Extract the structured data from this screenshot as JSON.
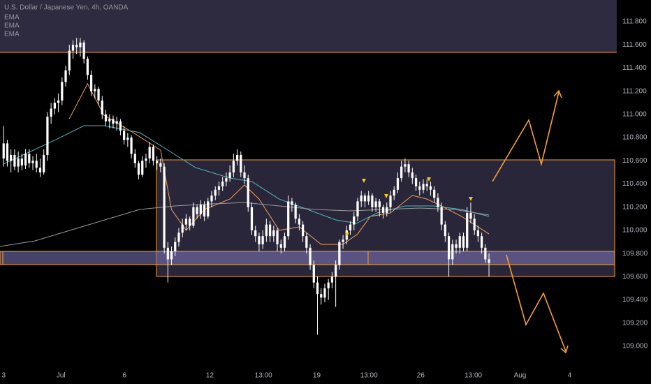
{
  "chart_data": {
    "type": "candlestick",
    "title": "U.S. Dollar / Japanese Yen, 4h, OANDA",
    "color": "#ffffff",
    "grid": false,
    "xlim": [
      -1,
      168.4
    ],
    "ylim": [
      108.825,
      111.987
    ],
    "xticks": [
      {
        "value": 0,
        "label": "3"
      },
      {
        "value": 15.7,
        "label": "Jul"
      },
      {
        "value": 33.1,
        "label": "6"
      },
      {
        "value": 56.5,
        "label": "12"
      },
      {
        "value": 71.2,
        "label": "13:00"
      },
      {
        "value": 85.8,
        "label": "19"
      },
      {
        "value": 100.1,
        "label": "13:00"
      },
      {
        "value": 114.3,
        "label": "26"
      },
      {
        "value": 128.7,
        "label": "13:00"
      },
      {
        "value": 141.5,
        "label": "Aug"
      },
      {
        "value": 155.1,
        "label": "4"
      }
    ],
    "yticks": [
      {
        "value": 109.0,
        "label": "109.000"
      },
      {
        "value": 109.2,
        "label": "109.200"
      },
      {
        "value": 109.4,
        "label": "109.400"
      },
      {
        "value": 109.6,
        "label": "109.600"
      },
      {
        "value": 109.8,
        "label": "109.800"
      },
      {
        "value": 110.0,
        "label": "110.000"
      },
      {
        "value": 110.2,
        "label": "110.200"
      },
      {
        "value": 110.4,
        "label": "110.400"
      },
      {
        "value": 110.6,
        "label": "110.600"
      },
      {
        "value": 110.8,
        "label": "110.800"
      },
      {
        "value": 111.0,
        "label": "111.000"
      },
      {
        "value": 111.2,
        "label": "111.200"
      },
      {
        "value": 111.4,
        "label": "111.400"
      },
      {
        "value": 111.6,
        "label": "111.600"
      },
      {
        "value": 111.8,
        "label": "111.800"
      }
    ],
    "candles": [
      [
        110.62,
        110.9,
        110.55,
        110.75
      ],
      [
        110.75,
        110.78,
        110.55,
        110.6
      ],
      [
        110.6,
        110.7,
        110.5,
        110.65
      ],
      [
        110.65,
        110.7,
        110.52,
        110.55
      ],
      [
        110.55,
        110.68,
        110.5,
        110.62
      ],
      [
        110.62,
        110.66,
        110.52,
        110.56
      ],
      [
        110.56,
        110.7,
        110.53,
        110.66
      ],
      [
        110.66,
        110.7,
        110.54,
        110.58
      ],
      [
        110.58,
        110.64,
        110.52,
        110.6
      ],
      [
        110.6,
        110.66,
        110.5,
        110.54
      ],
      [
        110.54,
        110.62,
        110.46,
        110.5
      ],
      [
        110.5,
        110.7,
        110.48,
        110.65
      ],
      [
        110.65,
        111.02,
        110.6,
        110.98
      ],
      [
        110.98,
        111.1,
        110.92,
        111.05
      ],
      [
        111.05,
        111.14,
        111.0,
        111.1
      ],
      [
        111.1,
        111.18,
        111.02,
        111.12
      ],
      [
        111.12,
        111.32,
        111.08,
        111.28
      ],
      [
        111.28,
        111.42,
        111.24,
        111.38
      ],
      [
        111.38,
        111.6,
        111.34,
        111.55
      ],
      [
        111.55,
        111.64,
        111.48,
        111.6
      ],
      [
        111.6,
        111.66,
        111.52,
        111.58
      ],
      [
        111.58,
        111.66,
        111.5,
        111.62
      ],
      [
        111.62,
        111.64,
        111.44,
        111.48
      ],
      [
        111.48,
        111.5,
        111.3,
        111.34
      ],
      [
        111.34,
        111.38,
        111.16,
        111.2
      ],
      [
        111.2,
        111.26,
        111.14,
        111.22
      ],
      [
        111.22,
        111.24,
        111.08,
        111.12
      ],
      [
        111.12,
        111.16,
        110.96,
        111.0
      ],
      [
        111.0,
        111.04,
        110.9,
        110.94
      ],
      [
        110.94,
        111.0,
        110.88,
        110.96
      ],
      [
        110.96,
        110.99,
        110.88,
        110.92
      ],
      [
        110.92,
        110.98,
        110.86,
        110.94
      ],
      [
        110.94,
        110.96,
        110.82,
        110.86
      ],
      [
        110.86,
        110.9,
        110.74,
        110.78
      ],
      [
        110.78,
        110.84,
        110.72,
        110.8
      ],
      [
        110.8,
        110.82,
        110.62,
        110.66
      ],
      [
        110.66,
        110.7,
        110.54,
        110.58
      ],
      [
        110.58,
        110.6,
        110.44,
        110.48
      ],
      [
        110.48,
        110.64,
        110.46,
        110.6
      ],
      [
        110.6,
        110.66,
        110.54,
        110.62
      ],
      [
        110.62,
        110.76,
        110.58,
        110.72
      ],
      [
        110.72,
        110.74,
        110.56,
        110.6
      ],
      [
        110.6,
        110.64,
        110.52,
        110.58
      ],
      [
        110.58,
        110.62,
        110.5,
        110.55
      ],
      [
        110.55,
        110.58,
        109.8,
        109.85
      ],
      [
        109.85,
        109.9,
        109.55,
        109.75
      ],
      [
        109.75,
        109.86,
        109.7,
        109.82
      ],
      [
        109.82,
        109.94,
        109.78,
        109.9
      ],
      [
        109.9,
        110.02,
        109.86,
        109.98
      ],
      [
        109.98,
        110.1,
        109.94,
        110.05
      ],
      [
        110.05,
        110.14,
        110.0,
        110.1
      ],
      [
        110.1,
        110.12,
        110.0,
        110.04
      ],
      [
        110.04,
        110.24,
        110.02,
        110.2
      ],
      [
        110.2,
        110.22,
        110.1,
        110.14
      ],
      [
        110.14,
        110.26,
        110.1,
        110.22
      ],
      [
        110.22,
        110.25,
        110.08,
        110.12
      ],
      [
        110.12,
        110.28,
        110.1,
        110.25
      ],
      [
        110.25,
        110.34,
        110.2,
        110.3
      ],
      [
        110.3,
        110.38,
        110.26,
        110.35
      ],
      [
        110.35,
        110.42,
        110.3,
        110.38
      ],
      [
        110.38,
        110.46,
        110.34,
        110.42
      ],
      [
        110.42,
        110.5,
        110.38,
        110.45
      ],
      [
        110.45,
        110.56,
        110.42,
        110.5
      ],
      [
        110.5,
        110.66,
        110.46,
        110.6
      ],
      [
        110.6,
        110.7,
        110.56,
        110.65
      ],
      [
        110.65,
        110.68,
        110.46,
        110.5
      ],
      [
        110.5,
        110.56,
        110.4,
        110.45
      ],
      [
        110.45,
        110.48,
        110.16,
        110.2
      ],
      [
        110.2,
        110.24,
        109.96,
        110.0
      ],
      [
        110.0,
        110.04,
        109.9,
        109.95
      ],
      [
        109.95,
        109.98,
        109.82,
        109.88
      ],
      [
        109.88,
        110.0,
        109.84,
        109.95
      ],
      [
        109.95,
        110.1,
        109.9,
        110.05
      ],
      [
        110.05,
        110.08,
        109.9,
        109.95
      ],
      [
        109.95,
        110.04,
        109.9,
        110.0
      ],
      [
        110.0,
        110.02,
        109.82,
        109.88
      ],
      [
        109.88,
        109.92,
        109.8,
        109.85
      ],
      [
        109.85,
        109.98,
        109.82,
        109.95
      ],
      [
        109.95,
        110.3,
        109.92,
        110.25
      ],
      [
        110.25,
        110.28,
        110.16,
        110.22
      ],
      [
        110.22,
        110.24,
        110.06,
        110.1
      ],
      [
        110.1,
        110.14,
        110.0,
        110.05
      ],
      [
        110.05,
        110.08,
        109.9,
        109.95
      ],
      [
        109.95,
        109.98,
        109.8,
        109.85
      ],
      [
        109.85,
        109.88,
        109.66,
        109.7
      ],
      [
        109.7,
        109.74,
        109.5,
        109.55
      ],
      [
        109.55,
        109.6,
        109.1,
        109.45
      ],
      [
        109.45,
        109.5,
        109.36,
        109.42
      ],
      [
        109.42,
        109.54,
        109.38,
        109.5
      ],
      [
        109.5,
        109.58,
        109.4,
        109.55
      ],
      [
        109.55,
        109.64,
        109.5,
        109.6
      ],
      [
        109.6,
        109.74,
        109.34,
        109.7
      ],
      [
        109.7,
        109.92,
        109.66,
        109.9
      ],
      [
        109.9,
        109.96,
        109.84,
        109.92
      ],
      [
        109.92,
        110.04,
        109.88,
        110.0
      ],
      [
        110.0,
        110.08,
        109.96,
        110.05
      ],
      [
        110.05,
        110.16,
        110.0,
        110.12
      ],
      [
        110.12,
        110.28,
        110.08,
        110.25
      ],
      [
        110.25,
        110.34,
        110.2,
        110.3
      ],
      [
        110.3,
        110.32,
        110.2,
        110.25
      ],
      [
        110.25,
        110.34,
        110.22,
        110.3
      ],
      [
        110.3,
        110.32,
        110.16,
        110.2
      ],
      [
        110.2,
        110.28,
        110.16,
        110.25
      ],
      [
        110.25,
        110.27,
        110.12,
        110.2
      ],
      [
        110.2,
        110.22,
        110.1,
        110.15
      ],
      [
        110.15,
        110.24,
        110.12,
        110.2
      ],
      [
        110.2,
        110.34,
        110.16,
        110.3
      ],
      [
        110.3,
        110.38,
        110.26,
        110.35
      ],
      [
        110.35,
        110.5,
        110.32,
        110.45
      ],
      [
        110.45,
        110.6,
        110.42,
        110.55
      ],
      [
        110.55,
        110.62,
        110.5,
        110.57
      ],
      [
        110.57,
        110.6,
        110.46,
        110.5
      ],
      [
        110.5,
        110.54,
        110.4,
        110.45
      ],
      [
        110.45,
        110.48,
        110.34,
        110.38
      ],
      [
        110.38,
        110.42,
        110.3,
        110.35
      ],
      [
        110.35,
        110.44,
        110.32,
        110.4
      ],
      [
        110.4,
        110.44,
        110.34,
        110.38
      ],
      [
        110.38,
        110.42,
        110.3,
        110.35
      ],
      [
        110.35,
        110.38,
        110.24,
        110.28
      ],
      [
        110.28,
        110.32,
        110.16,
        110.2
      ],
      [
        110.2,
        110.24,
        110.0,
        110.05
      ],
      [
        110.05,
        110.08,
        109.9,
        109.95
      ],
      [
        109.95,
        109.98,
        109.6,
        109.75
      ],
      [
        109.75,
        109.92,
        109.7,
        109.88
      ],
      [
        109.88,
        109.92,
        109.8,
        109.85
      ],
      [
        109.85,
        109.98,
        109.8,
        109.95
      ],
      [
        109.95,
        109.98,
        109.82,
        109.85
      ],
      [
        109.85,
        110.2,
        109.82,
        110.15
      ],
      [
        110.15,
        110.24,
        110.06,
        110.1
      ],
      [
        110.1,
        110.14,
        109.96,
        110.0
      ],
      [
        110.0,
        110.04,
        109.9,
        109.95
      ],
      [
        109.95,
        109.98,
        109.8,
        109.85
      ],
      [
        109.85,
        109.88,
        109.72,
        109.75
      ],
      [
        109.75,
        109.8,
        109.6,
        109.72
      ]
    ],
    "series": [
      {
        "name": "EMA",
        "color": "#f0a058",
        "x": [
          18,
          23,
          27.5,
          35.5,
          43,
          46,
          50,
          55,
          62,
          66,
          70,
          75.5,
          81,
          87,
          93,
          97,
          100.5,
          106,
          112,
          116,
          120,
          125.5,
          133
        ],
        "values": [
          110.963,
          111.264,
          110.993,
          110.843,
          110.692,
          110.18,
          110.0,
          110.18,
          110.27,
          110.391,
          110.27,
          110.0,
          110.03,
          109.879,
          109.879,
          109.969,
          110.12,
          110.15,
          110.301,
          110.27,
          110.21,
          110.12,
          109.969
        ]
      },
      {
        "name": "EMA",
        "color": "#4fb8c0",
        "x": [
          0,
          14.3,
          22,
          27.5,
          37.3,
          45,
          52.6,
          62,
          68,
          75.5,
          83.3,
          91,
          96.7,
          102.4,
          110,
          117.8,
          125.4,
          133
        ],
        "values": [
          110.572,
          110.782,
          110.903,
          110.903,
          110.843,
          110.692,
          110.541,
          110.451,
          110.421,
          110.27,
          110.18,
          110.09,
          110.06,
          110.15,
          110.21,
          110.21,
          110.18,
          110.12
        ]
      },
      {
        "name": "EMA",
        "color": "#9a9a9a",
        "x": [
          -1,
          8.6,
          18.2,
          27.7,
          37.3,
          46.9,
          56.5,
          66,
          75.6,
          85.2,
          94.8,
          104.4,
          114,
          123.5,
          133
        ],
        "values": [
          109.861,
          109.909,
          110.0,
          110.09,
          110.18,
          110.21,
          110.228,
          110.24,
          110.21,
          110.18,
          110.168,
          110.18,
          110.192,
          110.18,
          110.132
        ]
      }
    ]
  }
}
